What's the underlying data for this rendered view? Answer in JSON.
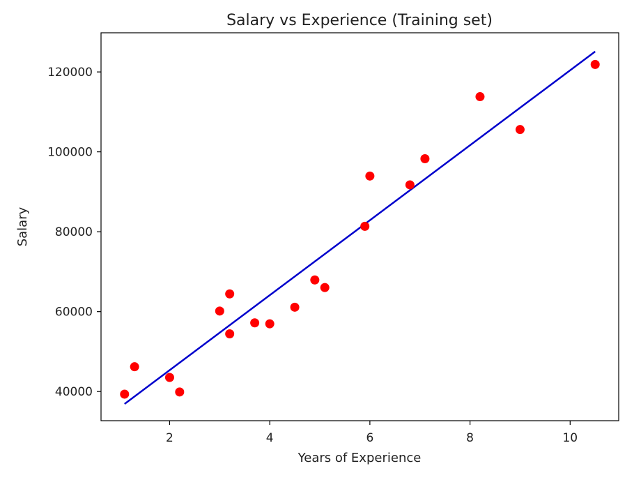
{
  "chart_data": {
    "type": "scatter",
    "title": "Salary vs Experience (Training set)",
    "xlabel": "Years of Experience",
    "ylabel": "Salary",
    "xlim": [
      0.63,
      10.97
    ],
    "ylim": [
      32700,
      129800
    ],
    "xticks": [
      2,
      4,
      6,
      8,
      10
    ],
    "yticks": [
      40000,
      60000,
      80000,
      100000,
      120000
    ],
    "xtick_labels": [
      "2",
      "4",
      "6",
      "8",
      "10"
    ],
    "ytick_labels": [
      "40000",
      "60000",
      "80000",
      "100000",
      "120000"
    ],
    "grid": false,
    "legend": "none",
    "series": [
      {
        "kind": "scatter",
        "color": "#ff0000",
        "points": [
          [
            1.1,
            39343
          ],
          [
            1.3,
            46205
          ],
          [
            2.0,
            43525
          ],
          [
            2.2,
            39891
          ],
          [
            3.0,
            60150
          ],
          [
            3.2,
            54445
          ],
          [
            3.2,
            64445
          ],
          [
            3.7,
            57189
          ],
          [
            4.0,
            56957
          ],
          [
            4.5,
            61111
          ],
          [
            4.9,
            67938
          ],
          [
            5.1,
            66029
          ],
          [
            5.9,
            81363
          ],
          [
            6.0,
            93940
          ],
          [
            6.8,
            91738
          ],
          [
            7.1,
            98273
          ],
          [
            8.2,
            113812
          ],
          [
            9.0,
            105582
          ],
          [
            10.5,
            121872
          ]
        ]
      },
      {
        "kind": "line",
        "color": "#0000cc",
        "points": [
          [
            1.1,
            36900
          ],
          [
            10.5,
            125100
          ]
        ]
      }
    ]
  }
}
